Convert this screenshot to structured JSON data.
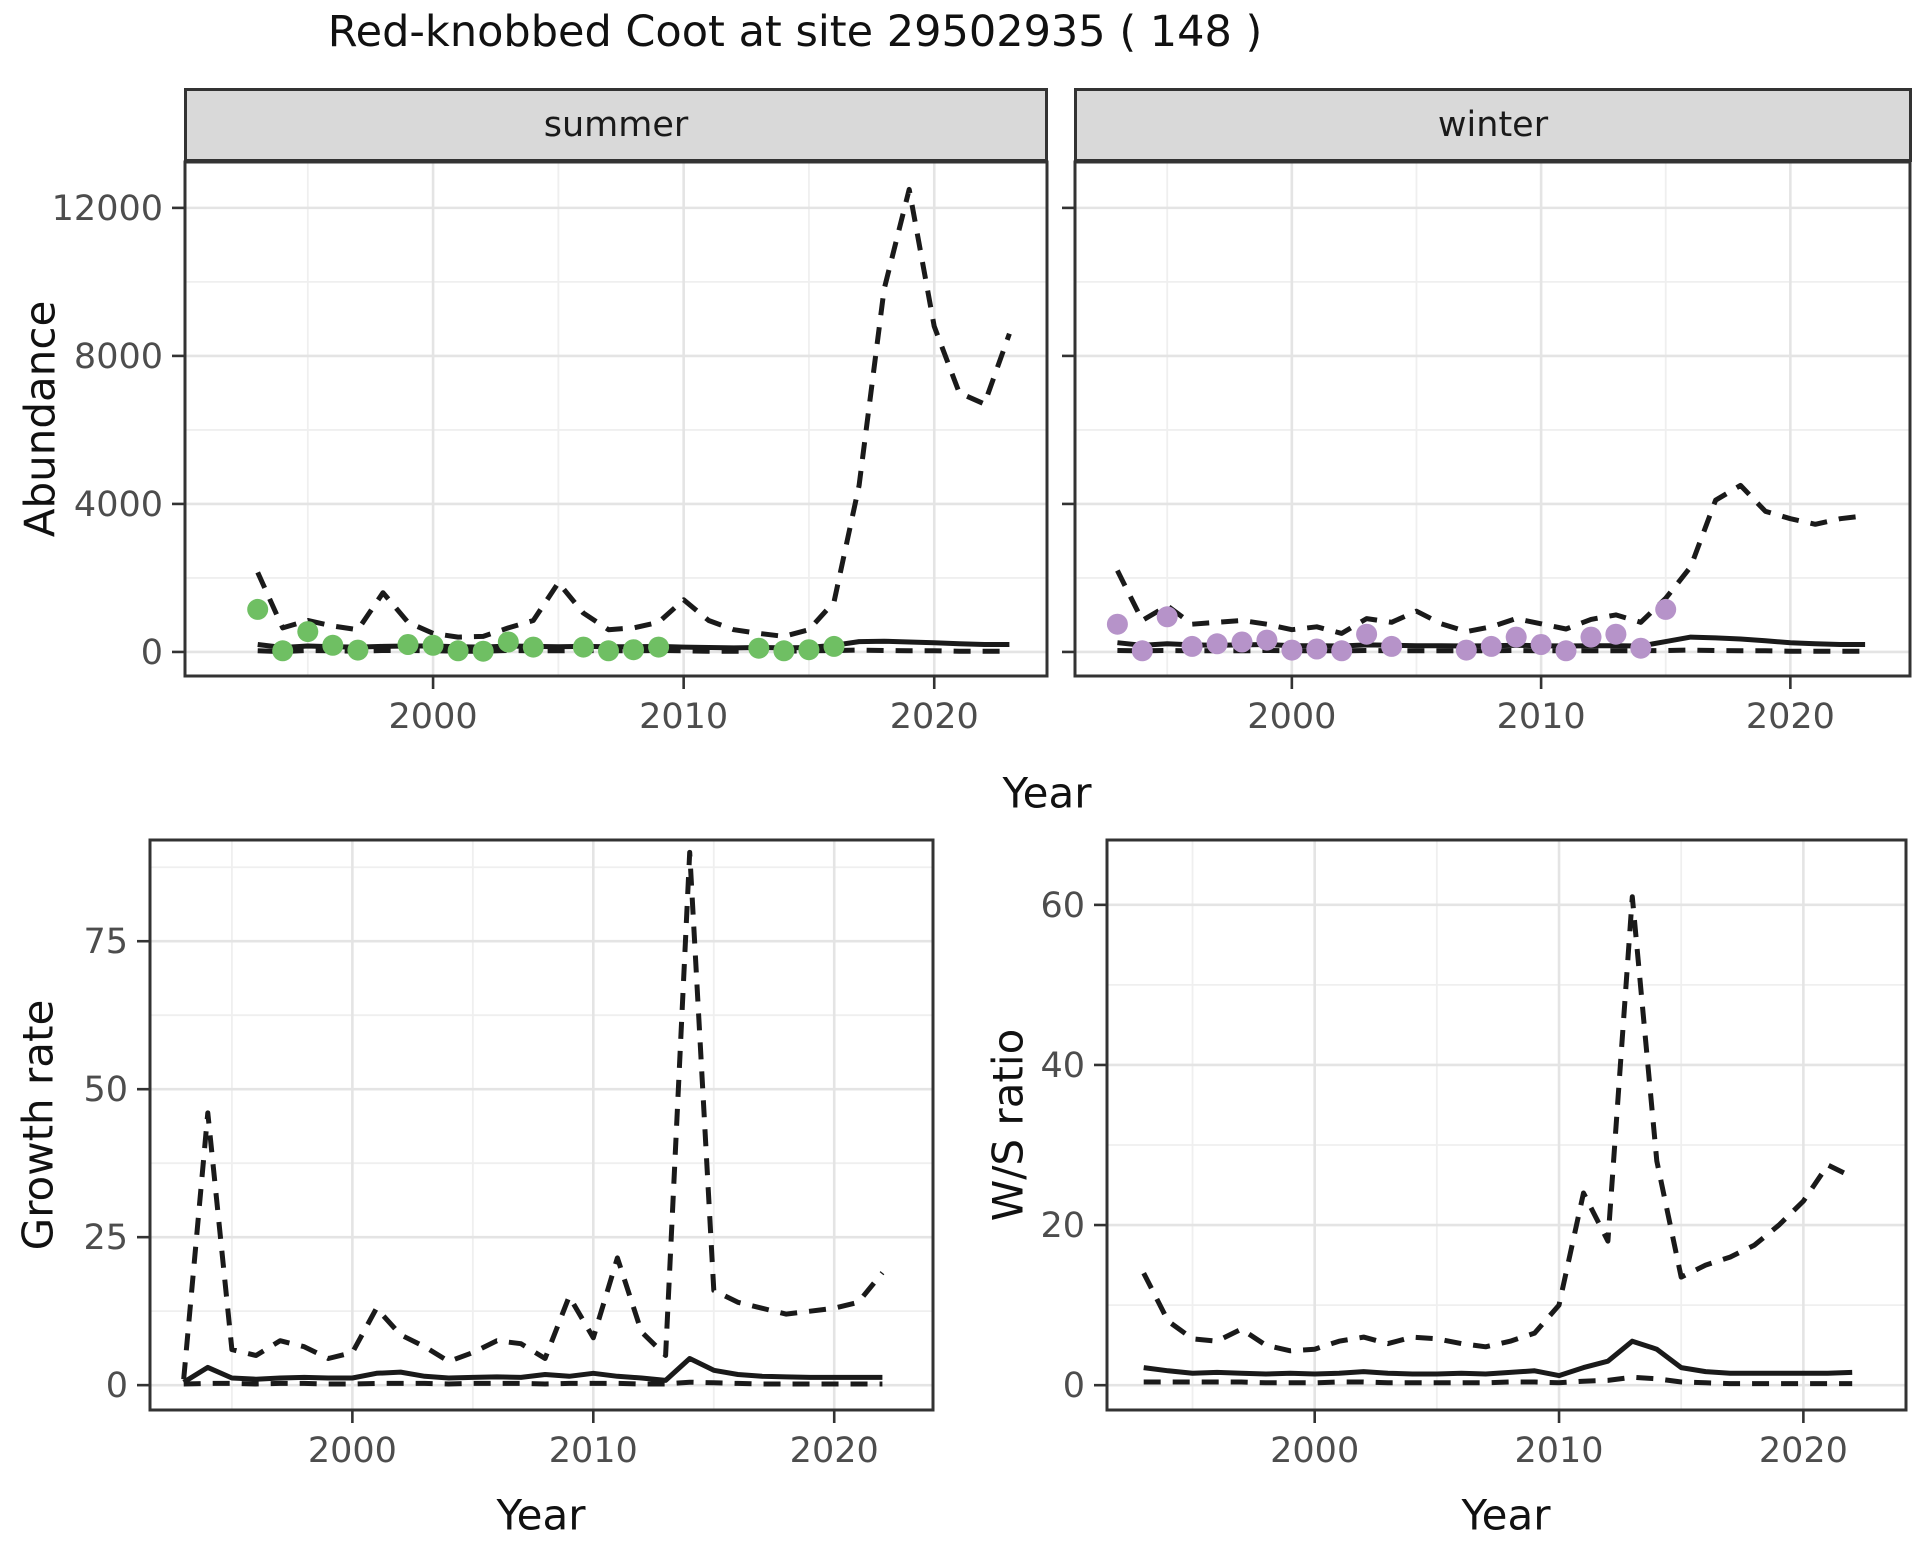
{
  "title": "Red-knobbed Coot at site 29502935 ( 148 )",
  "labels": {
    "abundance": "Abundance",
    "growth_rate": "Growth rate",
    "ws_ratio": "W/S ratio",
    "year": "Year"
  },
  "colors": {
    "summer_points": "#6fbf63",
    "winter_points": "#b693c9",
    "line": "#1a1a1a",
    "grid_major": "#e4e4e4",
    "grid_minor": "#efefef",
    "strip_bg": "#d9d9d9",
    "panel_border": "#333333",
    "tick_text": "#4d4d4d"
  },
  "chart_data": [
    {
      "type": "line",
      "facet": "summer",
      "title": "",
      "xlabel": "Year",
      "ylabel": "Abundance",
      "xlim": [
        1990.1,
        2024.5
      ],
      "ylim": [
        -650,
        13240
      ],
      "xticks": [
        2000,
        2010,
        2020
      ],
      "xminor": [
        1995,
        2005,
        2015
      ],
      "yticks": [
        0,
        4000,
        8000,
        12000
      ],
      "yminor": [
        2000,
        6000,
        10000
      ],
      "grid": true,
      "series": {
        "upper_ci": {
          "style": "dashed",
          "x": [
            1993,
            1994,
            1995,
            1996,
            1997,
            1998,
            1999,
            2000,
            2001,
            2002,
            2003,
            2004,
            2005,
            2006,
            2007,
            2008,
            2009,
            2010,
            2011,
            2012,
            2013,
            2014,
            2015,
            2016,
            2017,
            2018,
            2019,
            2020,
            2021,
            2022,
            2023
          ],
          "y": [
            2150,
            650,
            850,
            700,
            600,
            1600,
            800,
            500,
            400,
            420,
            650,
            850,
            1870,
            1050,
            600,
            650,
            800,
            1410,
            850,
            600,
            500,
            420,
            600,
            1350,
            4500,
            9800,
            12500,
            8800,
            7000,
            6700,
            8600
          ]
        },
        "median": {
          "style": "solid",
          "x": [
            1993,
            1994,
            1995,
            1996,
            1997,
            1998,
            1999,
            2000,
            2001,
            2002,
            2003,
            2004,
            2005,
            2006,
            2007,
            2008,
            2009,
            2010,
            2011,
            2012,
            2013,
            2014,
            2015,
            2016,
            2017,
            2018,
            2019,
            2020,
            2021,
            2022,
            2023
          ],
          "y": [
            200,
            120,
            160,
            140,
            130,
            150,
            160,
            160,
            140,
            130,
            160,
            150,
            140,
            150,
            140,
            140,
            150,
            130,
            120,
            110,
            120,
            110,
            120,
            180,
            280,
            290,
            270,
            250,
            220,
            200,
            200
          ]
        },
        "lower_ci": {
          "style": "dashed",
          "x": [
            1993,
            1994,
            1995,
            1996,
            1997,
            1998,
            1999,
            2000,
            2001,
            2002,
            2003,
            2004,
            2005,
            2006,
            2007,
            2008,
            2009,
            2010,
            2011,
            2012,
            2013,
            2014,
            2015,
            2016,
            2017,
            2018,
            2019,
            2020,
            2021,
            2022,
            2023
          ],
          "y": [
            30,
            10,
            40,
            30,
            20,
            40,
            40,
            30,
            20,
            20,
            40,
            30,
            30,
            40,
            30,
            30,
            40,
            30,
            20,
            20,
            20,
            20,
            30,
            40,
            50,
            40,
            30,
            30,
            20,
            20,
            20
          ]
        },
        "observed": {
          "style": "points",
          "color": "#6fbf63",
          "x": [
            1993,
            1994,
            1995,
            1996,
            1997,
            1999,
            2000,
            2001,
            2002,
            2003,
            2004,
            2006,
            2007,
            2008,
            2009,
            2013,
            2014,
            2015,
            2016
          ],
          "y": [
            1150,
            30,
            550,
            180,
            50,
            200,
            180,
            30,
            20,
            270,
            130,
            130,
            30,
            60,
            130,
            100,
            30,
            60,
            150
          ]
        }
      }
    },
    {
      "type": "line",
      "facet": "winter",
      "title": "",
      "xlabel": "Year",
      "ylabel": "Abundance",
      "xlim": [
        1991.3,
        2024.8
      ],
      "ylim": [
        -650,
        13240
      ],
      "xticks": [
        2000,
        2010,
        2020
      ],
      "xminor": [
        1995,
        2005,
        2015
      ],
      "yticks": [
        0,
        4000,
        8000,
        12000
      ],
      "yminor": [
        2000,
        6000,
        10000
      ],
      "grid": true,
      "series": {
        "upper_ci": {
          "style": "dashed",
          "x": [
            1993,
            1994,
            1995,
            1996,
            1997,
            1998,
            1999,
            2000,
            2001,
            2002,
            2003,
            2004,
            2005,
            2006,
            2007,
            2008,
            2009,
            2010,
            2011,
            2012,
            2013,
            2014,
            2015,
            2016,
            2017,
            2018,
            2019,
            2020,
            2021,
            2022,
            2023
          ],
          "y": [
            2200,
            850,
            1250,
            750,
            800,
            850,
            750,
            600,
            680,
            500,
            900,
            800,
            1100,
            760,
            550,
            680,
            900,
            760,
            620,
            880,
            1000,
            800,
            1450,
            2300,
            4100,
            4500,
            3800,
            3600,
            3450,
            3600,
            3680
          ]
        },
        "median": {
          "style": "solid",
          "x": [
            1993,
            1994,
            1995,
            1996,
            1997,
            1998,
            1999,
            2000,
            2001,
            2002,
            2003,
            2004,
            2005,
            2006,
            2007,
            2008,
            2009,
            2010,
            2011,
            2012,
            2013,
            2014,
            2015,
            2016,
            2017,
            2018,
            2019,
            2020,
            2021,
            2022,
            2023
          ],
          "y": [
            250,
            180,
            220,
            190,
            180,
            190,
            200,
            170,
            170,
            160,
            190,
            180,
            170,
            170,
            160,
            170,
            180,
            170,
            160,
            170,
            170,
            160,
            280,
            400,
            380,
            350,
            300,
            250,
            220,
            200,
            200
          ]
        },
        "lower_ci": {
          "style": "dashed",
          "x": [
            1993,
            1994,
            1995,
            1996,
            1997,
            1998,
            1999,
            2000,
            2001,
            2002,
            2003,
            2004,
            2005,
            2006,
            2007,
            2008,
            2009,
            2010,
            2011,
            2012,
            2013,
            2014,
            2015,
            2016,
            2017,
            2018,
            2019,
            2020,
            2021,
            2022,
            2023
          ],
          "y": [
            40,
            30,
            40,
            30,
            30,
            30,
            40,
            30,
            30,
            30,
            40,
            30,
            30,
            30,
            30,
            30,
            40,
            30,
            30,
            30,
            30,
            30,
            40,
            50,
            40,
            30,
            30,
            20,
            20,
            20,
            20
          ]
        },
        "observed": {
          "style": "points",
          "color": "#b693c9",
          "x": [
            1993,
            1994,
            1995,
            1996,
            1997,
            1998,
            1999,
            2000,
            2001,
            2002,
            2003,
            2004,
            2007,
            2008,
            2009,
            2010,
            2011,
            2012,
            2013,
            2014,
            2015
          ],
          "y": [
            750,
            30,
            950,
            150,
            220,
            270,
            320,
            50,
            80,
            30,
            480,
            150,
            50,
            150,
            400,
            200,
            30,
            400,
            480,
            100,
            1150
          ]
        }
      }
    },
    {
      "type": "line",
      "facet": "",
      "title": "",
      "xlabel": "Year",
      "ylabel": "Growth rate",
      "xlim": [
        1991.6,
        2024.1
      ],
      "ylim": [
        -4.2,
        92.1
      ],
      "xticks": [
        2000,
        2010,
        2020
      ],
      "xminor": [
        1995,
        2005,
        2015
      ],
      "yticks": [
        0,
        25,
        50,
        75
      ],
      "yminor": [
        12.5,
        37.5,
        62.5,
        87.5
      ],
      "grid": true,
      "series": {
        "upper_ci": {
          "style": "dashed",
          "x": [
            1993,
            1994,
            1995,
            1996,
            1997,
            1998,
            1999,
            2000,
            2001,
            2002,
            2003,
            2004,
            2005,
            2006,
            2007,
            2008,
            2009,
            2010,
            2011,
            2012,
            2013,
            2014,
            2015,
            2016,
            2017,
            2018,
            2019,
            2020,
            2021,
            2022
          ],
          "y": [
            1,
            46,
            6,
            5,
            7.5,
            6.5,
            4.5,
            5.5,
            13,
            8.5,
            6.5,
            4,
            5.5,
            7.5,
            7,
            4.5,
            15,
            8,
            21.5,
            9,
            5,
            90,
            16,
            14,
            13,
            12,
            12.5,
            13,
            14,
            19
          ]
        },
        "median": {
          "style": "solid",
          "x": [
            1993,
            1994,
            1995,
            1996,
            1997,
            1998,
            1999,
            2000,
            2001,
            2002,
            2003,
            2004,
            2005,
            2006,
            2007,
            2008,
            2009,
            2010,
            2011,
            2012,
            2013,
            2014,
            2015,
            2016,
            2017,
            2018,
            2019,
            2020,
            2021,
            2022
          ],
          "y": [
            0.5,
            3,
            1.2,
            1,
            1.2,
            1.3,
            1.2,
            1.2,
            2,
            2.2,
            1.5,
            1.2,
            1.3,
            1.4,
            1.3,
            1.8,
            1.5,
            2,
            1.5,
            1.2,
            0.8,
            4.5,
            2.5,
            1.8,
            1.5,
            1.4,
            1.3,
            1.3,
            1.3,
            1.3
          ]
        },
        "lower_ci": {
          "style": "dashed",
          "x": [
            1993,
            1994,
            1995,
            1996,
            1997,
            1998,
            1999,
            2000,
            2001,
            2002,
            2003,
            2004,
            2005,
            2006,
            2007,
            2008,
            2009,
            2010,
            2011,
            2012,
            2013,
            2014,
            2015,
            2016,
            2017,
            2018,
            2019,
            2020,
            2021,
            2022
          ],
          "y": [
            0.2,
            0.3,
            0.3,
            0.2,
            0.3,
            0.3,
            0.2,
            0.2,
            0.3,
            0.3,
            0.3,
            0.2,
            0.3,
            0.3,
            0.3,
            0.2,
            0.3,
            0.3,
            0.3,
            0.2,
            0.2,
            0.5,
            0.4,
            0.3,
            0.2,
            0.2,
            0.2,
            0.2,
            0.2,
            0.2
          ]
        }
      }
    },
    {
      "type": "line",
      "facet": "",
      "title": "",
      "xlabel": "Year",
      "ylabel": "W/S ratio",
      "xlim": [
        1991.5,
        2024.2
      ],
      "ylim": [
        -3.1,
        68.1
      ],
      "xticks": [
        2000,
        2010,
        2020
      ],
      "xminor": [
        1995,
        2005,
        2015
      ],
      "yticks": [
        0,
        20,
        40,
        60
      ],
      "yminor": [
        10,
        30,
        50
      ],
      "grid": true,
      "series": {
        "upper_ci": {
          "style": "dashed",
          "x": [
            1993,
            1994,
            1995,
            1996,
            1997,
            1998,
            1999,
            2000,
            2001,
            2002,
            2003,
            2004,
            2005,
            2006,
            2007,
            2008,
            2009,
            2010,
            2011,
            2012,
            2013,
            2014,
            2015,
            2016,
            2017,
            2018,
            2019,
            2020,
            2021,
            2022
          ],
          "y": [
            14,
            8,
            5.8,
            5.5,
            7,
            5,
            4.3,
            4.5,
            5.5,
            6,
            5.2,
            6,
            5.8,
            5.2,
            4.8,
            5.5,
            6.5,
            10,
            24,
            18,
            61,
            28,
            13.5,
            15,
            16,
            17.5,
            20,
            23,
            27.5,
            26
          ]
        },
        "median": {
          "style": "solid",
          "x": [
            1993,
            1994,
            1995,
            1996,
            1997,
            1998,
            1999,
            2000,
            2001,
            2002,
            2003,
            2004,
            2005,
            2006,
            2007,
            2008,
            2009,
            2010,
            2011,
            2012,
            2013,
            2014,
            2015,
            2016,
            2017,
            2018,
            2019,
            2020,
            2021,
            2022
          ],
          "y": [
            2.2,
            1.8,
            1.5,
            1.6,
            1.5,
            1.4,
            1.5,
            1.4,
            1.5,
            1.7,
            1.5,
            1.4,
            1.4,
            1.5,
            1.4,
            1.6,
            1.8,
            1.2,
            2.2,
            3,
            5.5,
            4.5,
            2.2,
            1.7,
            1.5,
            1.5,
            1.5,
            1.5,
            1.5,
            1.6
          ]
        },
        "lower_ci": {
          "style": "dashed",
          "x": [
            1993,
            1994,
            1995,
            1996,
            1997,
            1998,
            1999,
            2000,
            2001,
            2002,
            2003,
            2004,
            2005,
            2006,
            2007,
            2008,
            2009,
            2010,
            2011,
            2012,
            2013,
            2014,
            2015,
            2016,
            2017,
            2018,
            2019,
            2020,
            2021,
            2022
          ],
          "y": [
            0.4,
            0.4,
            0.4,
            0.4,
            0.4,
            0.3,
            0.3,
            0.3,
            0.4,
            0.4,
            0.3,
            0.3,
            0.3,
            0.3,
            0.3,
            0.4,
            0.4,
            0.3,
            0.5,
            0.6,
            1,
            0.8,
            0.4,
            0.3,
            0.2,
            0.2,
            0.2,
            0.2,
            0.2,
            0.2
          ]
        }
      }
    }
  ]
}
